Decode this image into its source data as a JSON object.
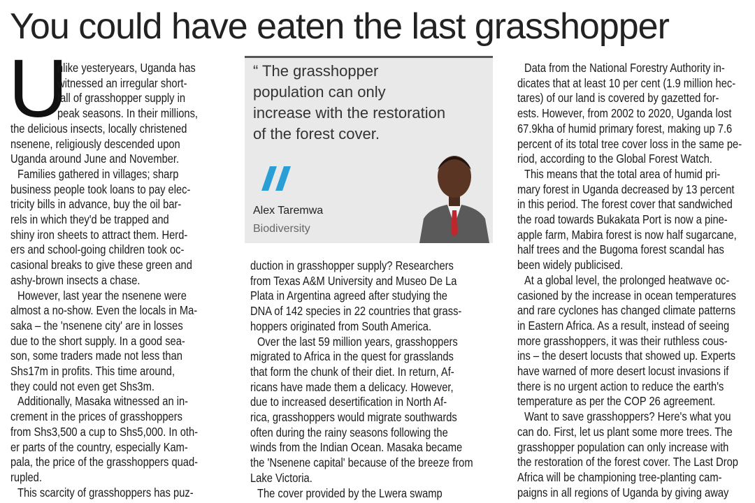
{
  "header": {
    "title": "You could have eaten the last grasshopper"
  },
  "column1": {
    "dropcap": "U",
    "paragraphs": [
      {
        "lines": [
          "nlike yesteryears, Uganda has",
          "witnessed an irregular short-",
          "fall of grasshopper supply in",
          "peak seasons. In their millions,",
          "the delicious insects, locally christened",
          "nsenene, religiously descended upon",
          "Uganda around June and November."
        ]
      },
      {
        "lines": [
          "Families gathered in villages; sharp",
          "business people took loans to pay elec-",
          "tricity bills in advance, buy the oil bar-",
          "rels in which they'd be trapped and",
          "shiny iron sheets to attract them. Herd-",
          "ers and school-going children took oc-",
          "casional breaks to give these green and",
          "ashy-brown insects a chase."
        ]
      },
      {
        "lines": [
          "However, last year the nsenene were",
          "almost a no-show. Even the locals in Ma-",
          "saka – the 'nsenene city' are in losses",
          "due to the short supply.  In a good sea-",
          "son, some traders made not less than",
          "Shs17m in profits. This time around,",
          "they could not even get Shs3m."
        ]
      },
      {
        "lines": [
          "Additionally, Masaka witnessed an in-",
          "crement in the prices of grasshoppers",
          "from Shs3,500 a cup to Shs5,000.  In oth-",
          "er parts of the country, especially Kam-",
          "pala, the price of the grasshoppers quad-",
          "rupled."
        ]
      },
      {
        "lines": [
          "This scarcity of grasshoppers has puz-"
        ]
      }
    ]
  },
  "pullquote": {
    "lines": [
      "“ The grasshopper",
      "population can only",
      "increase with the restoration",
      "of the forest cover."
    ],
    "author": "Alex Taremwa",
    "role": "Biodiversity"
  },
  "column2": {
    "paragraphs": [
      {
        "lines": [
          "duction in grasshopper supply?  Researchers",
          "from Texas A&M University and Museo De La",
          "Plata in Argentina agreed after studying the",
          "DNA of 142 species in 22 countries that grass-",
          "hoppers originated from South America."
        ]
      },
      {
        "lines": [
          "Over the last 59 million years, grasshoppers",
          "migrated to Africa in the quest for grasslands",
          "that form the chunk of their diet. In return, Af-",
          "ricans have made them a delicacy.  However,",
          "due to increased desertification in North Af-",
          "rica, grasshoppers would migrate southwards",
          "often during the rainy seasons following the",
          "winds from the Indian Ocean. Masaka became",
          "the 'Nsenene capital' because of the breeze from",
          "Lake Victoria."
        ]
      },
      {
        "lines": [
          "The cover provided by the Lwera swamp"
        ]
      }
    ]
  },
  "column3": {
    "paragraphs": [
      {
        "lines": [
          "Data from the National Forestry Authority in-",
          "dicates that at least 10 per cent (1.9 million hec-",
          "tares) of our land is covered by gazetted for-",
          "ests. However, from 2002 to 2020, Uganda lost",
          "67.9kha of humid primary forest, making up 7.6",
          "percent of its total tree cover loss in the same pe-",
          "riod, according to the Global Forest Watch."
        ]
      },
      {
        "lines": [
          "This means that the total area of humid pri-",
          "mary forest in Uganda decreased by 13 percent",
          "in this period. The forest cover that sandwiched",
          "the road towards Bukakata Port is now a pine-",
          "apple farm, Mabira forest is now half sugarcane,",
          "half trees and the Bugoma forest scandal has",
          "been widely publicised."
        ]
      },
      {
        "lines": [
          "At a global level, the prolonged heatwave oc-",
          "casioned by the increase in ocean temperatures",
          "and rare cyclones has changed climate patterns",
          "in Eastern Africa. As a result, instead of seeing",
          "more grasshoppers, it was their ruthless cous-",
          "ins – the desert locusts that showed up. Experts",
          "have warned of more desert locust invasions if",
          "there is no urgent action to reduce the earth's",
          "temperature as per the COP 26 agreement."
        ]
      },
      {
        "lines": [
          "Want to save grasshoppers? Here's what you",
          "can do. First, let us plant some more trees. The",
          "grasshopper population can only increase with",
          "the restoration of the forest cover. The Last Drop",
          "Africa will be championing tree-planting cam-",
          "paigns in all regions of Uganda by giving away"
        ]
      }
    ]
  }
}
